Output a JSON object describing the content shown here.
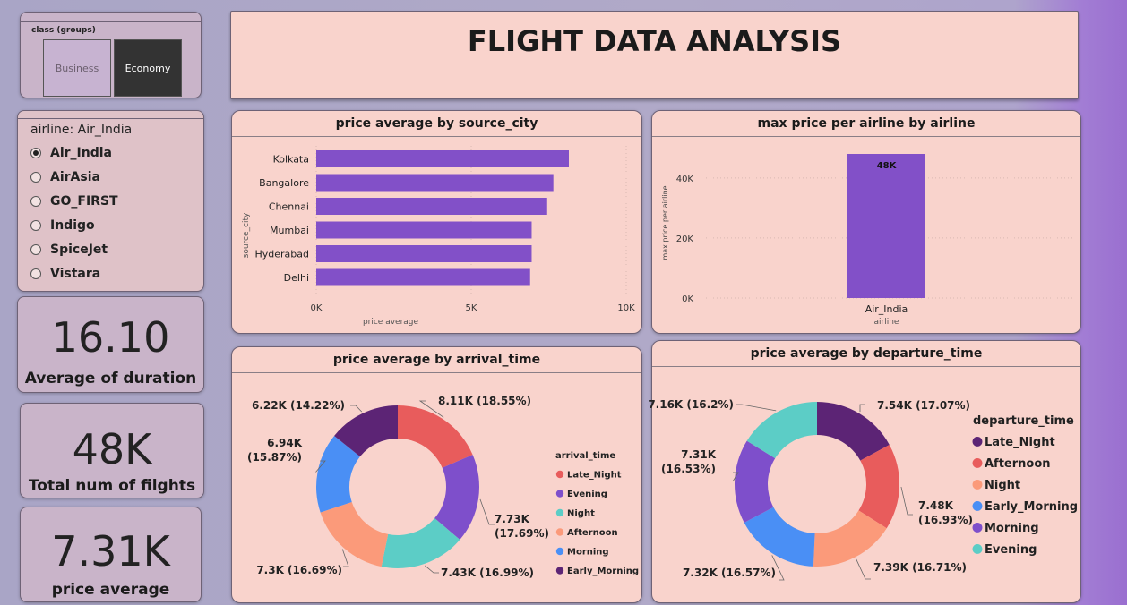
{
  "page_title": "FLIGHT DATA ANALYSIS",
  "class_slicer": {
    "title": "class (groups)",
    "options": [
      {
        "label": "Business",
        "selected": false
      },
      {
        "label": "Economy",
        "selected": true
      }
    ]
  },
  "airline_slicer": {
    "title": "airline: Air_India",
    "options": [
      "Air_India",
      "AirAsia",
      "GO_FIRST",
      "Indigo",
      "SpiceJet",
      "Vistara"
    ],
    "selected": "Air_India"
  },
  "kpis": {
    "duration": {
      "value": "16.10",
      "label": "Average of duration"
    },
    "flights": {
      "value": "48K",
      "label": "Total num of filghts"
    },
    "price": {
      "value": "7.31K",
      "label": "price average"
    }
  },
  "colors": {
    "bar": "#8250c8",
    "card_bg": "#f9d3cc"
  },
  "chart_data": [
    {
      "type": "bar",
      "orientation": "horizontal",
      "title": "price average by source_city",
      "categories": [
        "Kolkata",
        "Bangalore",
        "Chennai",
        "Mumbai",
        "Hyderabad",
        "Delhi"
      ],
      "values": [
        8150,
        7650,
        7450,
        6950,
        6950,
        6900
      ],
      "xlabel": "price average",
      "ylabel": "source_city",
      "xlim": [
        0,
        10000
      ],
      "xticks": [
        "0K",
        "5K",
        "10K"
      ],
      "color": "#8250c8"
    },
    {
      "type": "bar",
      "title": "max price per airline by airline",
      "categories": [
        "Air_India"
      ],
      "values": [
        48000
      ],
      "data_labels": [
        "48K"
      ],
      "xlabel": "airline",
      "ylabel": "max price per airline",
      "ylim": [
        0,
        48000
      ],
      "yticks": [
        "0K",
        "20K",
        "40K"
      ],
      "color": "#8250c8"
    },
    {
      "type": "pie",
      "donut": true,
      "title": "price average by arrival_time",
      "legend_title": "arrival_time",
      "slices": [
        {
          "name": "Late_Night",
          "value": 8.11,
          "label": "8.11K (18.55%)",
          "color": "#e85c5c"
        },
        {
          "name": "Evening",
          "value": 7.73,
          "label": "7.73K (17.69%)",
          "color": "#7e4fcb"
        },
        {
          "name": "Night",
          "value": 7.43,
          "label": "7.43K (16.99%)",
          "color": "#5ccdc6"
        },
        {
          "name": "Afternoon",
          "value": 7.3,
          "label": "7.3K (16.69%)",
          "color": "#fb9a7a"
        },
        {
          "name": "Morning",
          "value": 6.94,
          "label": "6.94K (15.87%)",
          "color": "#4a8ff5"
        },
        {
          "name": "Early_Morning",
          "value": 6.22,
          "label": "6.22K (14.22%)",
          "color": "#5c2475"
        }
      ]
    },
    {
      "type": "pie",
      "donut": true,
      "title": "price average by departure_time",
      "legend_title": "departure_time",
      "slices": [
        {
          "name": "Late_Night",
          "value": 7.54,
          "label": "7.54K (17.07%)",
          "color": "#5c2475"
        },
        {
          "name": "Afternoon",
          "value": 7.48,
          "label": "7.48K (16.93%)",
          "color": "#e85c5c"
        },
        {
          "name": "Night",
          "value": 7.39,
          "label": "7.39K (16.71%)",
          "color": "#fb9a7a"
        },
        {
          "name": "Early_Morning",
          "value": 7.32,
          "label": "7.32K (16.57%)",
          "color": "#4a8ff5"
        },
        {
          "name": "Morning",
          "value": 7.31,
          "label": "7.31K (16.53%)",
          "color": "#7e4fcb"
        },
        {
          "name": "Evening",
          "value": 7.16,
          "label": "7.16K (16.2%)",
          "color": "#5ccdc6"
        }
      ]
    }
  ]
}
